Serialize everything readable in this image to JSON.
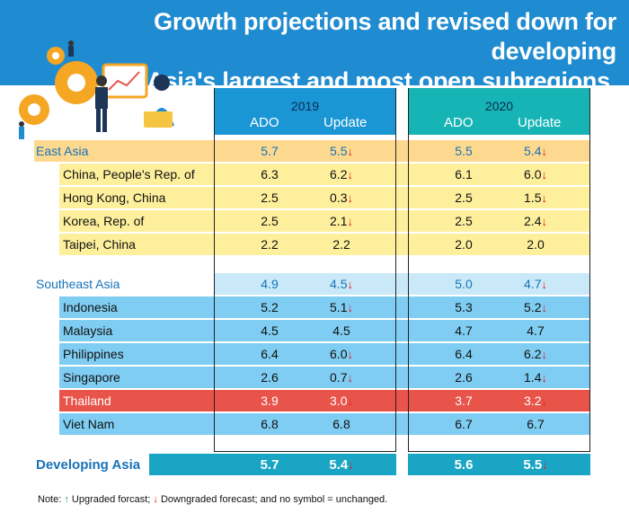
{
  "title_line1": "Growth projections and revised down for developing",
  "title_line2": "Asia's largest and most open subregions.",
  "columns": {
    "y2019": "2019",
    "y2020": "2020",
    "ado": "ADO",
    "update": "Update"
  },
  "colors": {
    "header_blue": "#1f8bd0",
    "east_asia_region": "#fcd98f",
    "east_asia_row": "#fdef9c",
    "sea_region": "#c9e9f8",
    "sea_row": "#7fcdf2",
    "thailand": "#e8544a",
    "developing": "#1aa5c4",
    "down_arrow": "#e02020",
    "up_arrow": "#1aa060"
  },
  "chart_data": {
    "type": "table",
    "title": "Growth projections and revised down for developing Asia's largest and most open subregions.",
    "headers": [
      "",
      "2019 ADO",
      "2019 Update",
      "2020 ADO",
      "2020 Update"
    ],
    "rows": [
      {
        "name": "East Asia",
        "kind": "region-ea",
        "v": [
          "5.7",
          "5.5",
          "5.5",
          "5.4"
        ],
        "down": [
          false,
          true,
          false,
          true
        ]
      },
      {
        "name": "China, People's Rep. of",
        "kind": "ea",
        "v": [
          "6.3",
          "6.2",
          "6.1",
          "6.0"
        ],
        "down": [
          false,
          true,
          false,
          true
        ]
      },
      {
        "name": "Hong Kong, China",
        "kind": "ea",
        "v": [
          "2.5",
          "0.3",
          "2.5",
          "1.5"
        ],
        "down": [
          false,
          true,
          false,
          true
        ]
      },
      {
        "name": "Korea, Rep. of",
        "kind": "ea",
        "v": [
          "2.5",
          "2.1",
          "2.5",
          "2.4"
        ],
        "down": [
          false,
          true,
          false,
          true
        ]
      },
      {
        "name": "Taipei, China",
        "kind": "ea",
        "v": [
          "2.2",
          "2.2",
          "2.0",
          "2.0"
        ],
        "down": [
          false,
          false,
          false,
          false
        ]
      },
      {
        "name": "Southeast Asia",
        "kind": "region-sea",
        "v": [
          "4.9",
          "4.5",
          "5.0",
          "4.7"
        ],
        "down": [
          false,
          true,
          false,
          true
        ]
      },
      {
        "name": "Indonesia",
        "kind": "sea",
        "v": [
          "5.2",
          "5.1",
          "5.3",
          "5.2"
        ],
        "down": [
          false,
          true,
          false,
          true
        ]
      },
      {
        "name": "Malaysia",
        "kind": "sea",
        "v": [
          "4.5",
          "4.5",
          "4.7",
          "4.7"
        ],
        "down": [
          false,
          false,
          false,
          false
        ]
      },
      {
        "name": "Philippines",
        "kind": "sea",
        "v": [
          "6.4",
          "6.0",
          "6.4",
          "6.2"
        ],
        "down": [
          false,
          true,
          false,
          true
        ]
      },
      {
        "name": "Singapore",
        "kind": "sea",
        "v": [
          "2.6",
          "0.7",
          "2.6",
          "1.4"
        ],
        "down": [
          false,
          true,
          false,
          true
        ]
      },
      {
        "name": "Thailand",
        "kind": "thai",
        "v": [
          "3.9",
          "3.0",
          "3.7",
          "3.2"
        ],
        "down": [
          false,
          true,
          false,
          true
        ]
      },
      {
        "name": "Viet Nam",
        "kind": "sea",
        "v": [
          "6.8",
          "6.8",
          "6.7",
          "6.7"
        ],
        "down": [
          false,
          false,
          false,
          false
        ]
      },
      {
        "name": "Developing Asia",
        "kind": "dev",
        "v": [
          "5.7",
          "5.4",
          "5.6",
          "5.5"
        ],
        "down": [
          false,
          true,
          false,
          true
        ]
      }
    ]
  },
  "note": {
    "prefix": "Note:",
    "up_text": "Upgraded forcast;",
    "down_text": "Downgraded forecast; and no symbol = unchanged."
  }
}
